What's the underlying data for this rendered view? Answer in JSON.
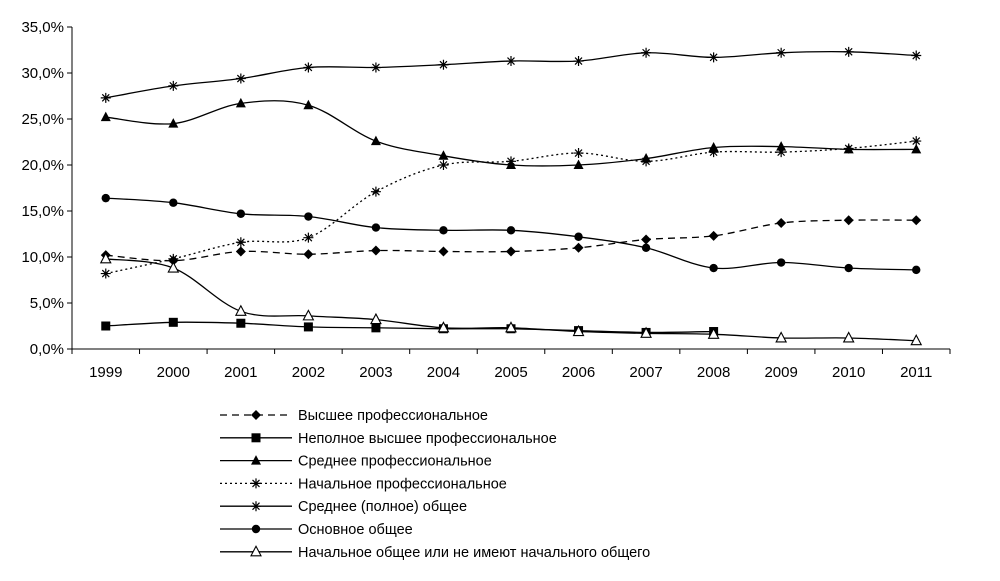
{
  "chart_data": {
    "type": "line",
    "title": "",
    "xlabel": "",
    "ylabel": "",
    "x": [
      "1999",
      "2000",
      "2001",
      "2002",
      "2003",
      "2004",
      "2005",
      "2006",
      "2007",
      "2008",
      "2009",
      "2010",
      "2011"
    ],
    "ylim": [
      0,
      35
    ],
    "y_ticks": [
      "0,0%",
      "5,0%",
      "10,0%",
      "15,0%",
      "20,0%",
      "25,0%",
      "30,0%",
      "35,0%"
    ],
    "y_tick_values": [
      0,
      5,
      10,
      15,
      20,
      25,
      30,
      35
    ],
    "grid": false,
    "legend_position": "bottom",
    "series": [
      {
        "name": "Высшее профессиональное",
        "marker": "diamond",
        "dash": "dashed",
        "values": [
          10.2,
          9.6,
          10.6,
          10.3,
          10.7,
          10.6,
          10.6,
          11.0,
          11.9,
          12.3,
          13.7,
          14.0,
          14.0
        ]
      },
      {
        "name": "Неполное высшее профессиональное",
        "marker": "square",
        "dash": "solid",
        "values": [
          2.5,
          2.9,
          2.8,
          2.4,
          2.3,
          2.2,
          2.2,
          2.0,
          1.8,
          1.9,
          null,
          null,
          null
        ]
      },
      {
        "name": "Среднее профессиональное",
        "marker": "triangle",
        "dash": "solid",
        "values": [
          25.2,
          24.5,
          26.7,
          26.5,
          22.6,
          21.0,
          20.0,
          20.0,
          20.7,
          21.9,
          22.0,
          21.7,
          21.7
        ]
      },
      {
        "name": "Начальное профессиональное",
        "marker": "star",
        "dash": "dotted",
        "values": [
          8.2,
          9.8,
          11.6,
          12.1,
          17.1,
          20.0,
          20.4,
          21.3,
          20.4,
          21.4,
          21.4,
          21.8,
          22.6
        ]
      },
      {
        "name": "Среднее (полное) общее",
        "marker": "star",
        "dash": "solid",
        "values": [
          27.3,
          28.6,
          29.4,
          30.6,
          30.6,
          30.9,
          31.3,
          31.3,
          32.2,
          31.7,
          32.2,
          32.3,
          31.9
        ]
      },
      {
        "name": "Основное общее",
        "marker": "circle",
        "dash": "solid",
        "values": [
          16.4,
          15.9,
          14.7,
          14.4,
          13.2,
          12.9,
          12.9,
          12.2,
          11.0,
          8.8,
          9.4,
          8.8,
          8.6
        ]
      },
      {
        "name": "Начальное общее или не имеют начального общего",
        "marker": "triangle-open",
        "dash": "solid",
        "values": [
          9.8,
          8.8,
          4.1,
          3.6,
          3.2,
          2.3,
          2.3,
          1.9,
          1.7,
          1.6,
          1.2,
          1.2,
          0.9
        ]
      }
    ]
  }
}
